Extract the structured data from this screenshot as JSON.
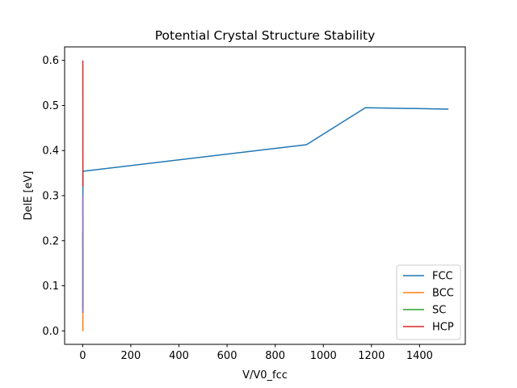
{
  "chart_data": {
    "type": "line",
    "title": "Potential Crystal Structure Stability",
    "xlabel": "V/V0_fcc",
    "ylabel": "DelE [eV]",
    "xlim": [
      -75,
      1590
    ],
    "ylim": [
      -0.03,
      0.63
    ],
    "x_ticks": [
      0,
      200,
      400,
      600,
      800,
      1000,
      1200,
      1400
    ],
    "y_ticks": [
      0.0,
      0.1,
      0.2,
      0.3,
      0.4,
      0.5,
      0.6
    ],
    "x_tick_labels": [
      "0",
      "200",
      "400",
      "600",
      "800",
      "1000",
      "1200",
      "1400"
    ],
    "y_tick_labels": [
      "0.0",
      "0.1",
      "0.2",
      "0.3",
      "0.4",
      "0.5",
      "0.6"
    ],
    "grid": false,
    "legend_position": "lower-right",
    "series": [
      {
        "name": "FCC",
        "color": "#1f77b4",
        "x": [
          0.7,
          0.8,
          0.9,
          1.0,
          930,
          1175,
          1520
        ],
        "y": [
          0.04,
          0.15,
          0.28,
          0.354,
          0.413,
          0.495,
          0.492
        ]
      },
      {
        "name": "BCC",
        "color": "#ff7f0e",
        "x": [
          0.7,
          0.8,
          0.9,
          1.0,
          1.1
        ],
        "y": [
          0.02,
          0.0,
          0.005,
          0.03,
          0.08
        ]
      },
      {
        "name": "SC",
        "color": "#2ca02c",
        "x": [
          0.7,
          0.8,
          0.9,
          1.0,
          1.1
        ],
        "y": [
          0.22,
          0.1,
          0.05,
          0.08,
          0.15
        ]
      },
      {
        "name": "HCP",
        "color": "#d62728",
        "x": [
          0.7,
          0.8,
          0.9,
          1.0,
          1.1
        ],
        "y": [
          0.6,
          0.52,
          0.44,
          0.35,
          0.32
        ]
      },
      {
        "color": "#9467bd",
        "x": [
          0.7,
          0.8,
          0.9,
          1.0,
          1.1
        ],
        "y": [
          0.3,
          0.24,
          0.15,
          0.09,
          0.04
        ]
      }
    ]
  }
}
